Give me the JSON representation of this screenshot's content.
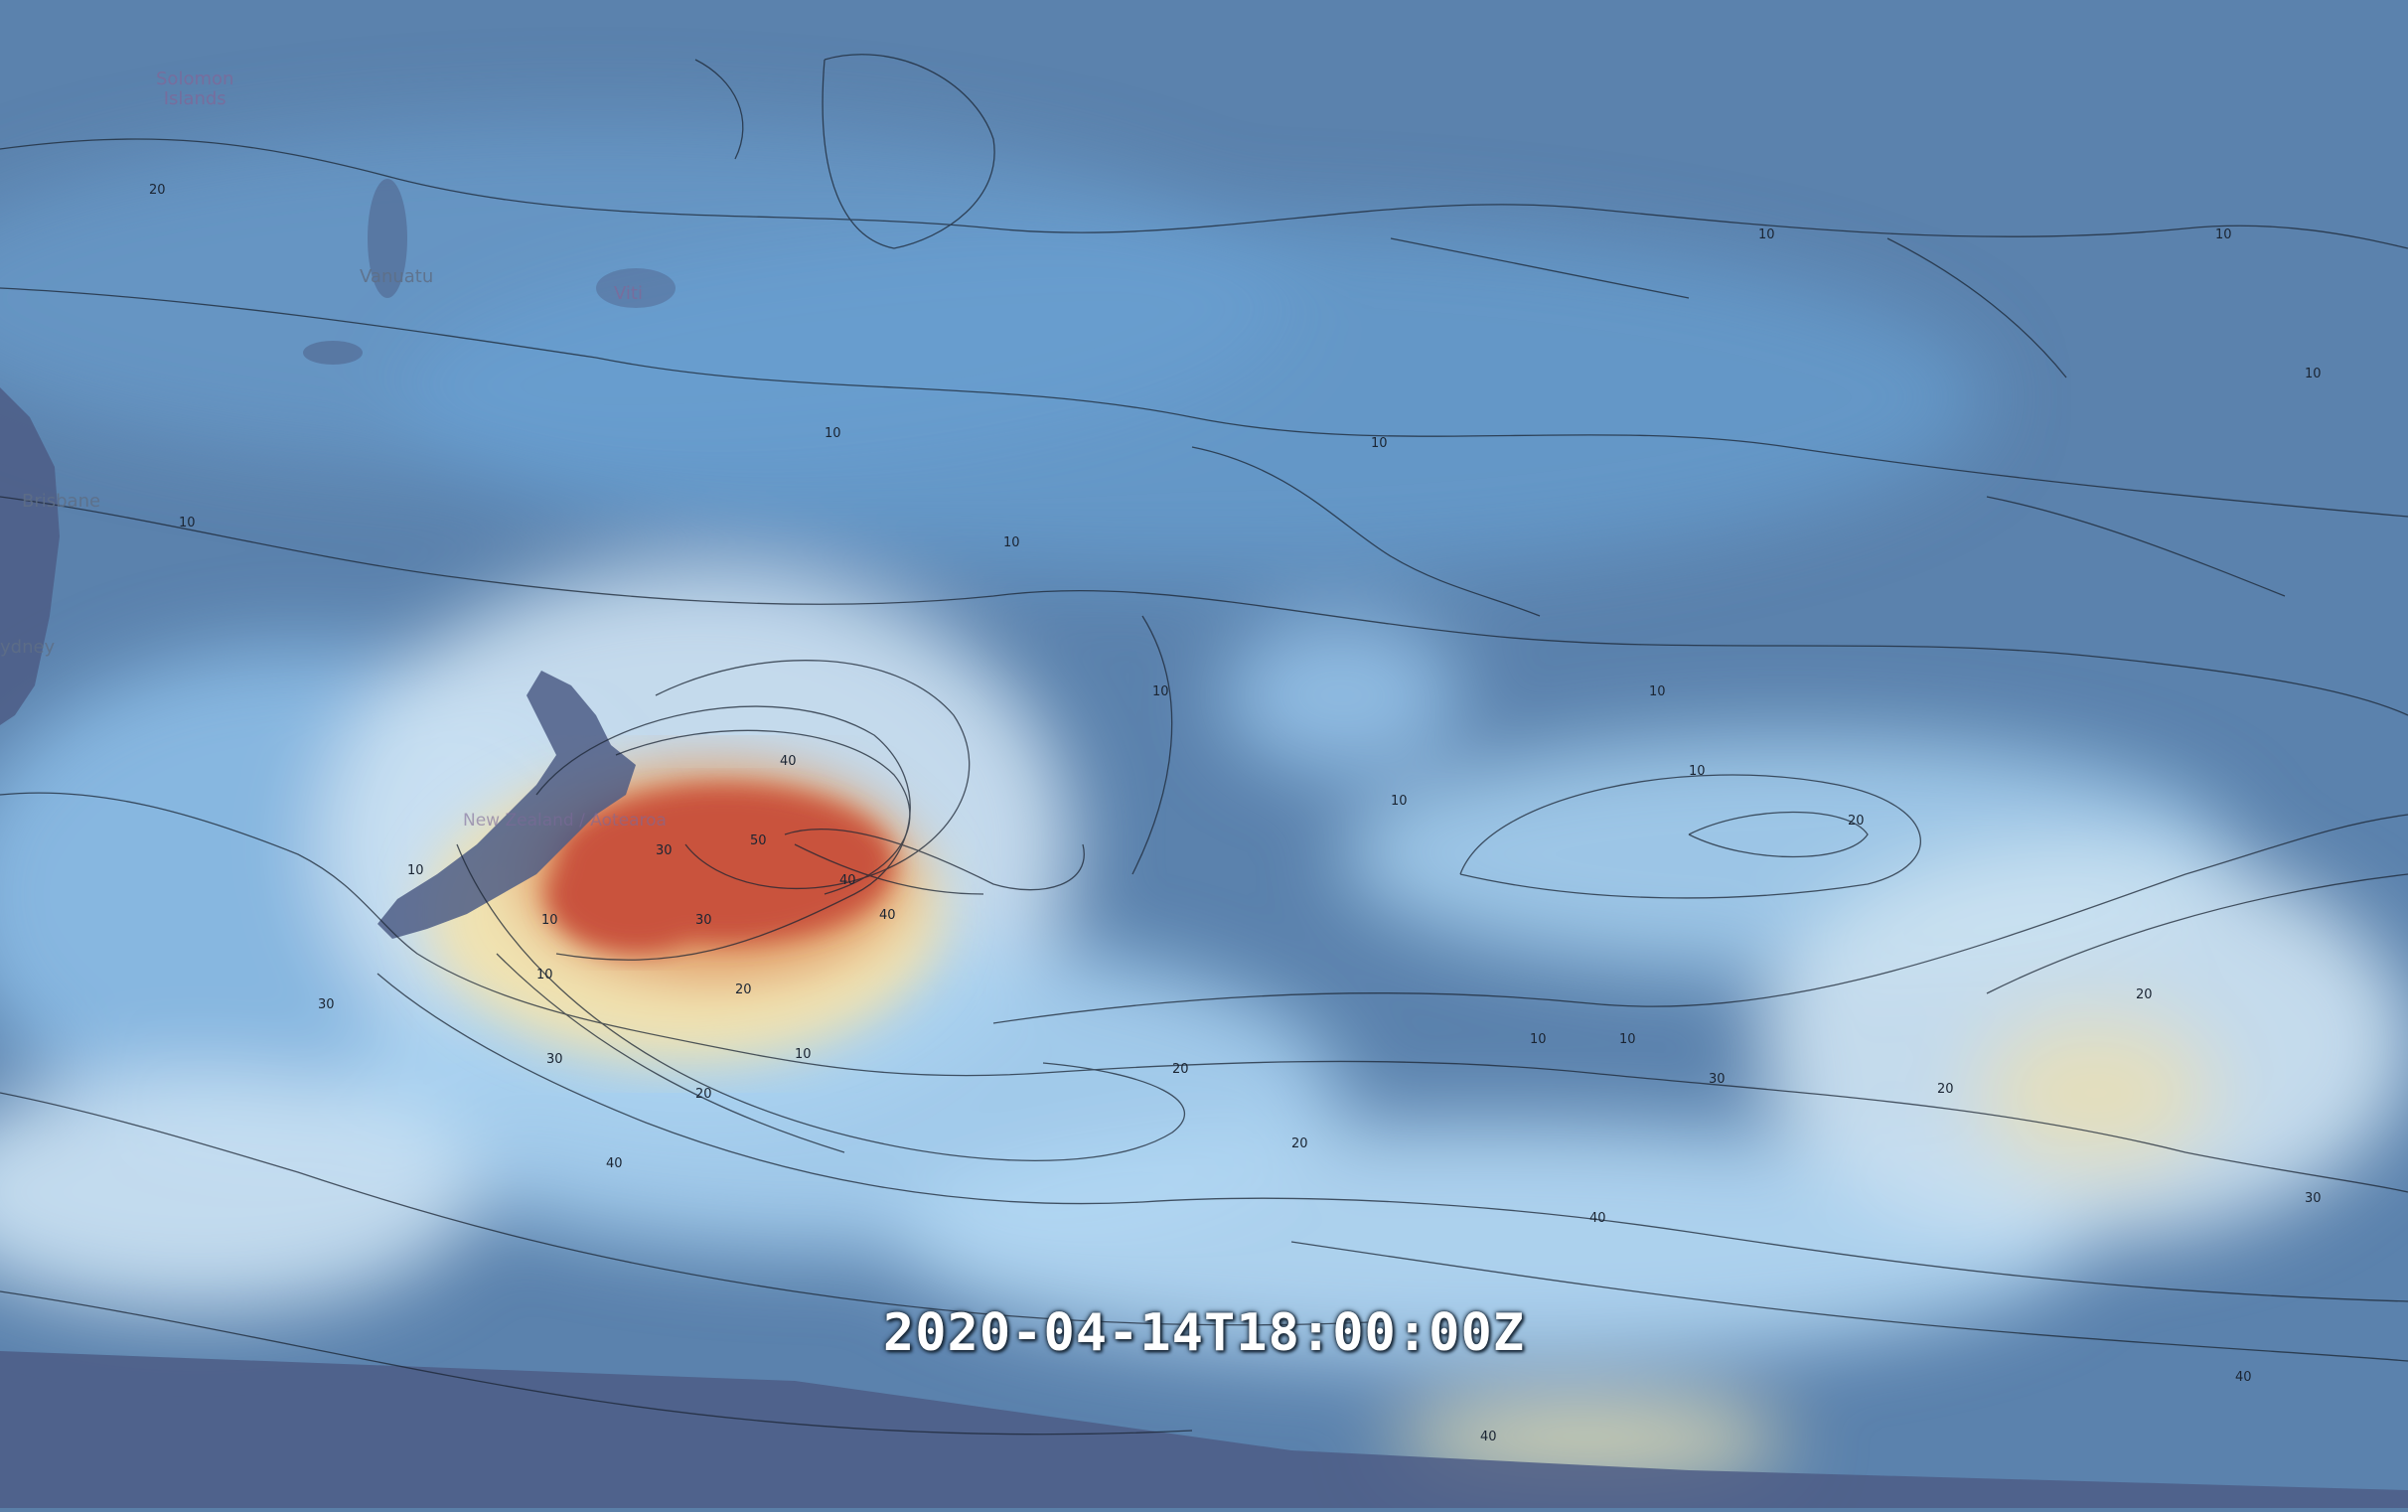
{
  "map": {
    "timestamp": "2020-04-14T18:00:00Z",
    "places": [
      {
        "id": "solomon",
        "label": "Solomon\nIslands"
      },
      {
        "id": "vanuatu",
        "label": "Vanuatu"
      },
      {
        "id": "viti",
        "label": "Viti"
      },
      {
        "id": "brisbane",
        "label": "Brisbane"
      },
      {
        "id": "sydney",
        "label": "ydney"
      },
      {
        "id": "nz",
        "label": "New Zealand / Aotearoa"
      }
    ],
    "contour_labels": [
      "10",
      "20",
      "30",
      "40",
      "50"
    ],
    "colors": {
      "background": "#5a7fa8",
      "low": "#6aa7dc",
      "mid": "#dbe6f1",
      "high_yellow": "#e9d28a",
      "high_red": "#c9523e",
      "land": "#4a5a82",
      "contour": "#1b2533"
    }
  }
}
